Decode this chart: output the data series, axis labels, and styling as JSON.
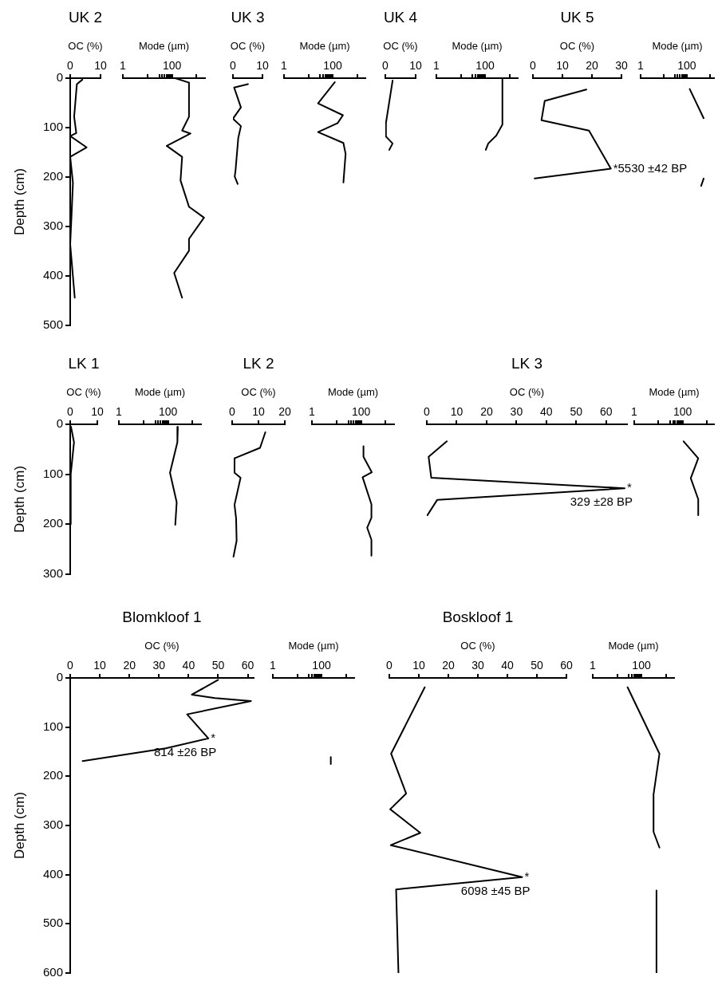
{
  "chart_data": [
    {
      "type": "line",
      "title": "UK 2",
      "xlabel": "OC (%)",
      "ylabel": "Depth (cm)",
      "xlim": [
        0,
        10
      ],
      "xticks": [
        0,
        10
      ],
      "ylim": [
        500,
        0
      ],
      "yticks": [
        0,
        100,
        200,
        300,
        400,
        500
      ],
      "marker": "none",
      "series": [
        {
          "color": "#000000",
          "x": [
            4.0,
            2.2,
            1.3,
            2.0,
            0,
            5.4,
            0,
            0.9,
            0.4,
            0,
            1.5
          ],
          "values": [
            3,
            12,
            78,
            111,
            117,
            140,
            159,
            212,
            283,
            336,
            444
          ]
        }
      ]
    },
    {
      "type": "line",
      "xlabel": "Mode (µm)",
      "log": "x",
      "xlim": [
        1,
        2200
      ],
      "xticks": [
        1,
        {
          "value": 10,
          "label": null
        },
        {
          "value": 30,
          "label": null
        },
        {
          "value": 40,
          "label": null
        },
        {
          "value": 50,
          "label": null
        },
        {
          "value": 60,
          "label": null
        },
        {
          "value": 70,
          "label": null
        },
        {
          "value": 80,
          "label": null
        },
        {
          "value": 90,
          "label": null
        },
        100,
        {
          "value": 1000,
          "label": null
        }
      ],
      "ylim": [
        500,
        0
      ],
      "tick_labels": "x",
      "marker": "none",
      "series": [
        {
          "color": "#000000",
          "x": [
            135,
            490,
            490,
            257,
            565,
            61,
            257,
            222,
            490,
            2000,
            490,
            490,
            122,
            257
          ],
          "values": [
            0,
            9,
            78,
            106,
            112,
            137,
            159,
            207,
            260,
            282,
            325,
            349,
            394,
            444
          ]
        }
      ]
    },
    {
      "type": "line",
      "title": "UK 3",
      "xlabel": "OC (%)",
      "xlim": [
        0,
        10
      ],
      "xticks": [
        0,
        10
      ],
      "ylim": [
        500,
        0
      ],
      "tick_labels": "x",
      "marker": "none",
      "series": [
        {
          "color": "#000000",
          "x": [
            5.1,
            0.4,
            2.7,
            0,
            2.7,
            1.8,
            0.9,
            0.6,
            1.6
          ],
          "values": [
            12,
            19,
            59,
            82,
            97,
            121,
            185,
            199,
            214
          ]
        }
      ]
    },
    {
      "type": "line",
      "xlabel": "Mode (µm)",
      "log": "x",
      "xlim": [
        1,
        2200
      ],
      "xticks": [
        1,
        {
          "value": 10,
          "label": null
        },
        {
          "value": 30,
          "label": null
        },
        {
          "value": 40,
          "label": null
        },
        {
          "value": 50,
          "label": null
        },
        {
          "value": 60,
          "label": null
        },
        {
          "value": 70,
          "label": null
        },
        {
          "value": 80,
          "label": null
        },
        {
          "value": 90,
          "label": null
        },
        100,
        {
          "value": 1000,
          "label": null
        }
      ],
      "ylim": [
        500,
        0
      ],
      "tick_labels": "x",
      "marker": "none",
      "series": [
        {
          "color": "#000000",
          "x": [
            123,
            25,
            263,
            159,
            25,
            275,
            339,
            275
          ],
          "values": [
            8,
            51,
            75,
            91,
            109,
            131,
            153,
            211
          ]
        }
      ]
    },
    {
      "type": "line",
      "title": "UK 4",
      "xlabel": "OC (%)",
      "xlim": [
        0,
        10
      ],
      "xticks": [
        0,
        10
      ],
      "ylim": [
        500,
        0
      ],
      "tick_labels": "x",
      "marker": "none",
      "series": [
        {
          "color": "#000000",
          "x": [
            2.4,
            0.2,
            0.2,
            2.4,
            1.3
          ],
          "values": [
            5,
            91,
            118,
            132,
            145
          ]
        }
      ]
    },
    {
      "type": "line",
      "xlabel": "Mode (µm)",
      "log": "x",
      "xlim": [
        1,
        2200
      ],
      "xticks": [
        1,
        {
          "value": 10,
          "label": null
        },
        {
          "value": 30,
          "label": null
        },
        {
          "value": 40,
          "label": null
        },
        {
          "value": 50,
          "label": null
        },
        {
          "value": 60,
          "label": null
        },
        {
          "value": 70,
          "label": null
        },
        {
          "value": 80,
          "label": null
        },
        {
          "value": 90,
          "label": null
        },
        100,
        {
          "value": 1000,
          "label": null
        }
      ],
      "ylim": [
        500,
        0
      ],
      "tick_labels": "x",
      "marker": "none",
      "series": [
        {
          "color": "#000000",
          "x": [
            515,
            515,
            288,
            135,
            107
          ],
          "values": [
            3,
            94,
            116,
            132,
            145
          ]
        }
      ]
    },
    {
      "type": "line",
      "title": "UK 5",
      "xlabel": "OC (%)",
      "xlim": [
        0,
        30
      ],
      "xticks": [
        0,
        10,
        20,
        30
      ],
      "ylim": [
        500,
        0
      ],
      "tick_labels": "x",
      "marker": "none",
      "series": [
        {
          "color": "#000000",
          "x": [
            18.1,
            4.0,
            2.9,
            19.0,
            26.4,
            0.6
          ],
          "values": [
            23,
            46,
            85,
            106,
            183,
            203
          ]
        }
      ],
      "annotations": [
        {
          "text": "*5530 ±42 BP",
          "x": 26.4,
          "y": 183
        }
      ]
    },
    {
      "type": "line",
      "xlabel": "Mode (µm)",
      "log": "x",
      "xlim": [
        1,
        1500
      ],
      "xticks": [
        1,
        {
          "value": 10,
          "label": null
        },
        {
          "value": 30,
          "label": null
        },
        {
          "value": 40,
          "label": null
        },
        {
          "value": 50,
          "label": null
        },
        {
          "value": 60,
          "label": null
        },
        {
          "value": 70,
          "label": null
        },
        {
          "value": 80,
          "label": null
        },
        {
          "value": 90,
          "label": null
        },
        100,
        {
          "value": 1000,
          "label": null
        }
      ],
      "ylim": [
        500,
        0
      ],
      "tick_labels": "x",
      "marker": "none",
      "series": [
        {
          "color": "#000000",
          "x": [
            133,
            535,
            null,
            535,
            416
          ],
          "values": [
            22,
            81,
            null,
            203,
            218
          ]
        }
      ]
    },
    {
      "type": "line",
      "title": "LK 1",
      "xlabel": "OC (%)",
      "ylabel": "Depth (cm)",
      "xlim": [
        0,
        10
      ],
      "xticks": [
        0,
        10
      ],
      "ylim": [
        300,
        0
      ],
      "yticks": [
        0,
        100,
        200,
        300
      ],
      "marker": "none",
      "series": [
        {
          "color": "#000000",
          "x": [
            0.3,
            1.4,
            0.2,
            0.2
          ],
          "values": [
            5,
            36,
            100,
            200
          ]
        }
      ]
    },
    {
      "type": "line",
      "xlabel": "Mode (µm)",
      "log": "x",
      "xlim": [
        1,
        2200
      ],
      "xticks": [
        1,
        {
          "value": 10,
          "label": null
        },
        {
          "value": 30,
          "label": null
        },
        {
          "value": 40,
          "label": null
        },
        {
          "value": 50,
          "label": null
        },
        {
          "value": 60,
          "label": null
        },
        {
          "value": 70,
          "label": null
        },
        {
          "value": 80,
          "label": null
        },
        {
          "value": 90,
          "label": null
        },
        100,
        {
          "value": 1000,
          "label": null
        }
      ],
      "ylim": [
        300,
        0
      ],
      "tick_labels": "x",
      "marker": "none",
      "series": [
        {
          "color": "#000000",
          "x": [
            250,
            240,
            120,
            225,
            197
          ],
          "values": [
            5,
            36,
            97,
            156,
            201
          ]
        }
      ]
    },
    {
      "type": "line",
      "title": "LK 2",
      "xlabel": "OC (%)",
      "xlim": [
        0,
        20
      ],
      "xticks": [
        0,
        10,
        20
      ],
      "ylim": [
        300,
        0
      ],
      "tick_labels": "x",
      "marker": "none",
      "series": [
        {
          "color": "#000000",
          "x": [
            12.6,
            10.6,
            0.9,
            0.9,
            3.2,
            0.9,
            1.5,
            1.7,
            0.5
          ],
          "values": [
            16,
            47,
            68,
            97,
            107,
            161,
            188,
            233,
            265
          ]
        }
      ]
    },
    {
      "type": "line",
      "xlabel": "Mode (µm)",
      "log": "x",
      "xlim": [
        1,
        2200
      ],
      "xticks": [
        1,
        {
          "value": 10,
          "label": null
        },
        {
          "value": 30,
          "label": null
        },
        {
          "value": 40,
          "label": null
        },
        {
          "value": 50,
          "label": null
        },
        {
          "value": 60,
          "label": null
        },
        {
          "value": 70,
          "label": null
        },
        {
          "value": 80,
          "label": null
        },
        {
          "value": 90,
          "label": null
        },
        100,
        {
          "value": 1000,
          "label": null
        }
      ],
      "ylim": [
        300,
        0
      ],
      "tick_labels": "x",
      "marker": "none",
      "series": [
        {
          "color": "#000000",
          "x": [
            125,
            125,
            273,
            115,
            263,
            263,
            177,
            263,
            263
          ],
          "values": [
            44,
            65,
            96,
            106,
            160,
            187,
            207,
            231,
            263
          ]
        }
      ]
    },
    {
      "type": "line",
      "title": "LK 3",
      "xlabel": "OC (%)",
      "xlim": [
        0,
        67
      ],
      "xticks": [
        0,
        10,
        20,
        30,
        40,
        50,
        60
      ],
      "ylim": [
        300,
        0
      ],
      "tick_labels": "x",
      "marker": "none",
      "series": [
        {
          "color": "#000000",
          "x": [
            6.7,
            0.6,
            1.5,
            66.2,
            3.5,
            0.2
          ],
          "values": [
            34,
            65,
            107,
            128,
            151,
            182
          ]
        }
      ],
      "annotations": [
        {
          "text": "*",
          "x": 66.2,
          "y": 128
        },
        "329 ±28 BP"
      ]
    },
    {
      "type": "line",
      "xlabel": "Mode (µm)",
      "log": "x",
      "xlim": [
        1,
        2000
      ],
      "xticks": [
        1,
        {
          "value": 10,
          "label": null
        },
        {
          "value": 30,
          "label": null
        },
        {
          "value": 40,
          "label": null
        },
        {
          "value": 50,
          "label": null
        },
        {
          "value": 60,
          "label": null
        },
        {
          "value": 70,
          "label": null
        },
        {
          "value": 80,
          "label": null
        },
        {
          "value": 90,
          "label": null
        },
        100,
        {
          "value": 1000,
          "label": null
        }
      ],
      "ylim": [
        300,
        0
      ],
      "tick_labels": "x",
      "marker": "none",
      "series": [
        {
          "color": "#000000",
          "x": [
            110,
            445,
            218,
            445,
            445
          ],
          "values": [
            34,
            68,
            108,
            150,
            182
          ]
        }
      ]
    },
    {
      "type": "line",
      "title": "Blomkloof 1",
      "xlabel": "OC (%)",
      "ylabel": "Depth (cm)",
      "xlim": [
        0,
        62
      ],
      "xticks": [
        0,
        10,
        20,
        30,
        40,
        50,
        60
      ],
      "ylim": [
        600,
        0
      ],
      "yticks": [
        0,
        100,
        200,
        300,
        400,
        500,
        600
      ],
      "marker": "none",
      "series": [
        {
          "color": "#000000",
          "x": [
            50.0,
            41.1,
            48.9,
            61.1,
            39.5,
            46.7,
            32.3,
            4.2
          ],
          "values": [
            4,
            34,
            41,
            47,
            74,
            123,
            143,
            169
          ]
        }
      ],
      "annotations": [
        {
          "text": "*",
          "x": 46.7,
          "y": 123
        },
        "814 ±26 BP"
      ]
    },
    {
      "type": "line",
      "xlabel": "Mode (µm)",
      "log": "x",
      "xlim": [
        1,
        2200
      ],
      "xticks": [
        1,
        {
          "value": 10,
          "label": null
        },
        {
          "value": 30,
          "label": null
        },
        {
          "value": 40,
          "label": null
        },
        {
          "value": 50,
          "label": null
        },
        {
          "value": 60,
          "label": null
        },
        {
          "value": 70,
          "label": null
        },
        {
          "value": 80,
          "label": null
        },
        {
          "value": 90,
          "label": null
        },
        100,
        {
          "value": 1000,
          "label": null
        }
      ],
      "ylim": [
        600,
        0
      ],
      "tick_labels": "x",
      "marker": "none",
      "series": [
        {
          "color": "#000000",
          "x": [
            240,
            240
          ],
          "values": [
            161,
            175
          ]
        }
      ]
    },
    {
      "type": "line",
      "title": "Boskloof 1",
      "xlabel": "OC (%)",
      "xlim": [
        0,
        60
      ],
      "xticks": [
        0,
        10,
        20,
        30,
        40,
        50,
        60
      ],
      "ylim": [
        600,
        0
      ],
      "tick_labels": "x",
      "marker": "none",
      "series": [
        {
          "color": "#000000",
          "x": [
            12.0,
            0.6,
            5.7,
            0.3,
            10.5,
            0.5,
            45,
            2.3,
            3.1
          ],
          "values": [
            19,
            154,
            235,
            267,
            315,
            340,
            405,
            430,
            600
          ]
        }
      ],
      "annotations": [
        {
          "text": "*",
          "x": 45,
          "y": 405
        },
        "6098 ±45 BP"
      ]
    },
    {
      "type": "line",
      "xlabel": "Mode (µm)",
      "log": "x",
      "xlim": [
        1,
        2200
      ],
      "xticks": [
        1,
        {
          "value": 10,
          "label": null
        },
        {
          "value": 30,
          "label": null
        },
        {
          "value": 40,
          "label": null
        },
        {
          "value": 50,
          "label": null
        },
        {
          "value": 60,
          "label": null
        },
        {
          "value": 70,
          "label": null
        },
        {
          "value": 80,
          "label": null
        },
        {
          "value": 90,
          "label": null
        },
        100,
        {
          "value": 1000,
          "label": null
        }
      ],
      "ylim": [
        600,
        0
      ],
      "tick_labels": "x",
      "marker": "none",
      "series": [
        {
          "color": "#000000",
          "x": [
            27,
            550,
            314,
            314,
            550,
            null,
            415,
            415
          ],
          "values": [
            19,
            154,
            237,
            313,
            345,
            null,
            432,
            600
          ]
        }
      ]
    }
  ]
}
